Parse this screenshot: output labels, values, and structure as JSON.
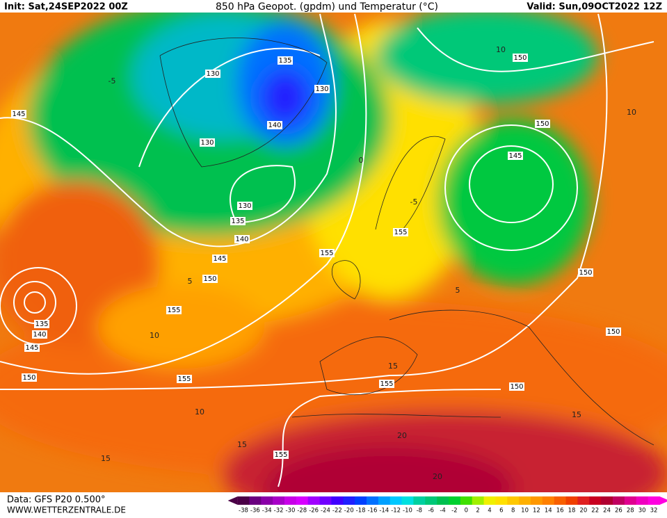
{
  "header": {
    "init": "Init: Sat,24SEP2022 00Z",
    "title": "850 hPa Geopot. (gpdm) und Temperatur (°C)",
    "valid": "Valid: Sun,09OCT2022 12Z"
  },
  "footer": {
    "source": "Data: GFS P20 0.500°",
    "site": "WWW.WETTERZENTRALE.DE"
  },
  "scale": {
    "ticks": [
      -38,
      -36,
      -34,
      -32,
      -30,
      -28,
      -26,
      -24,
      -22,
      -20,
      -18,
      -16,
      -14,
      -12,
      -10,
      -8,
      -6,
      -4,
      -2,
      0,
      2,
      4,
      6,
      8,
      10,
      12,
      14,
      16,
      18,
      20,
      22,
      24,
      26,
      28,
      30,
      32
    ],
    "colors": [
      "#4b0047",
      "#6a0080",
      "#8a00a8",
      "#a800c8",
      "#c800e8",
      "#d700ff",
      "#a000ff",
      "#7000ff",
      "#4000ff",
      "#2020ff",
      "#0040ff",
      "#0070ff",
      "#00a0ff",
      "#00c8ff",
      "#00e0e0",
      "#00d0a0",
      "#00c878",
      "#00c050",
      "#00d030",
      "#40e000",
      "#a0f000",
      "#f0f000",
      "#ffe000",
      "#ffc800",
      "#ffb000",
      "#ff9800",
      "#ff8000",
      "#f86000",
      "#f04000",
      "#e02020",
      "#c80020",
      "#b00030",
      "#c00060",
      "#e00090",
      "#f000c0",
      "#ff00e0"
    ]
  },
  "map": {
    "geopotential_labels": [
      130,
      135,
      130,
      140,
      130,
      130,
      135,
      140,
      145,
      150,
      155,
      155,
      150,
      150,
      145,
      150,
      150,
      150,
      155,
      155,
      155,
      135,
      140,
      145,
      150,
      155,
      145
    ],
    "temperature_labels": [
      10,
      10,
      10,
      15,
      15,
      20,
      15,
      20,
      15,
      10,
      -5,
      5,
      0,
      -5,
      5
    ]
  }
}
